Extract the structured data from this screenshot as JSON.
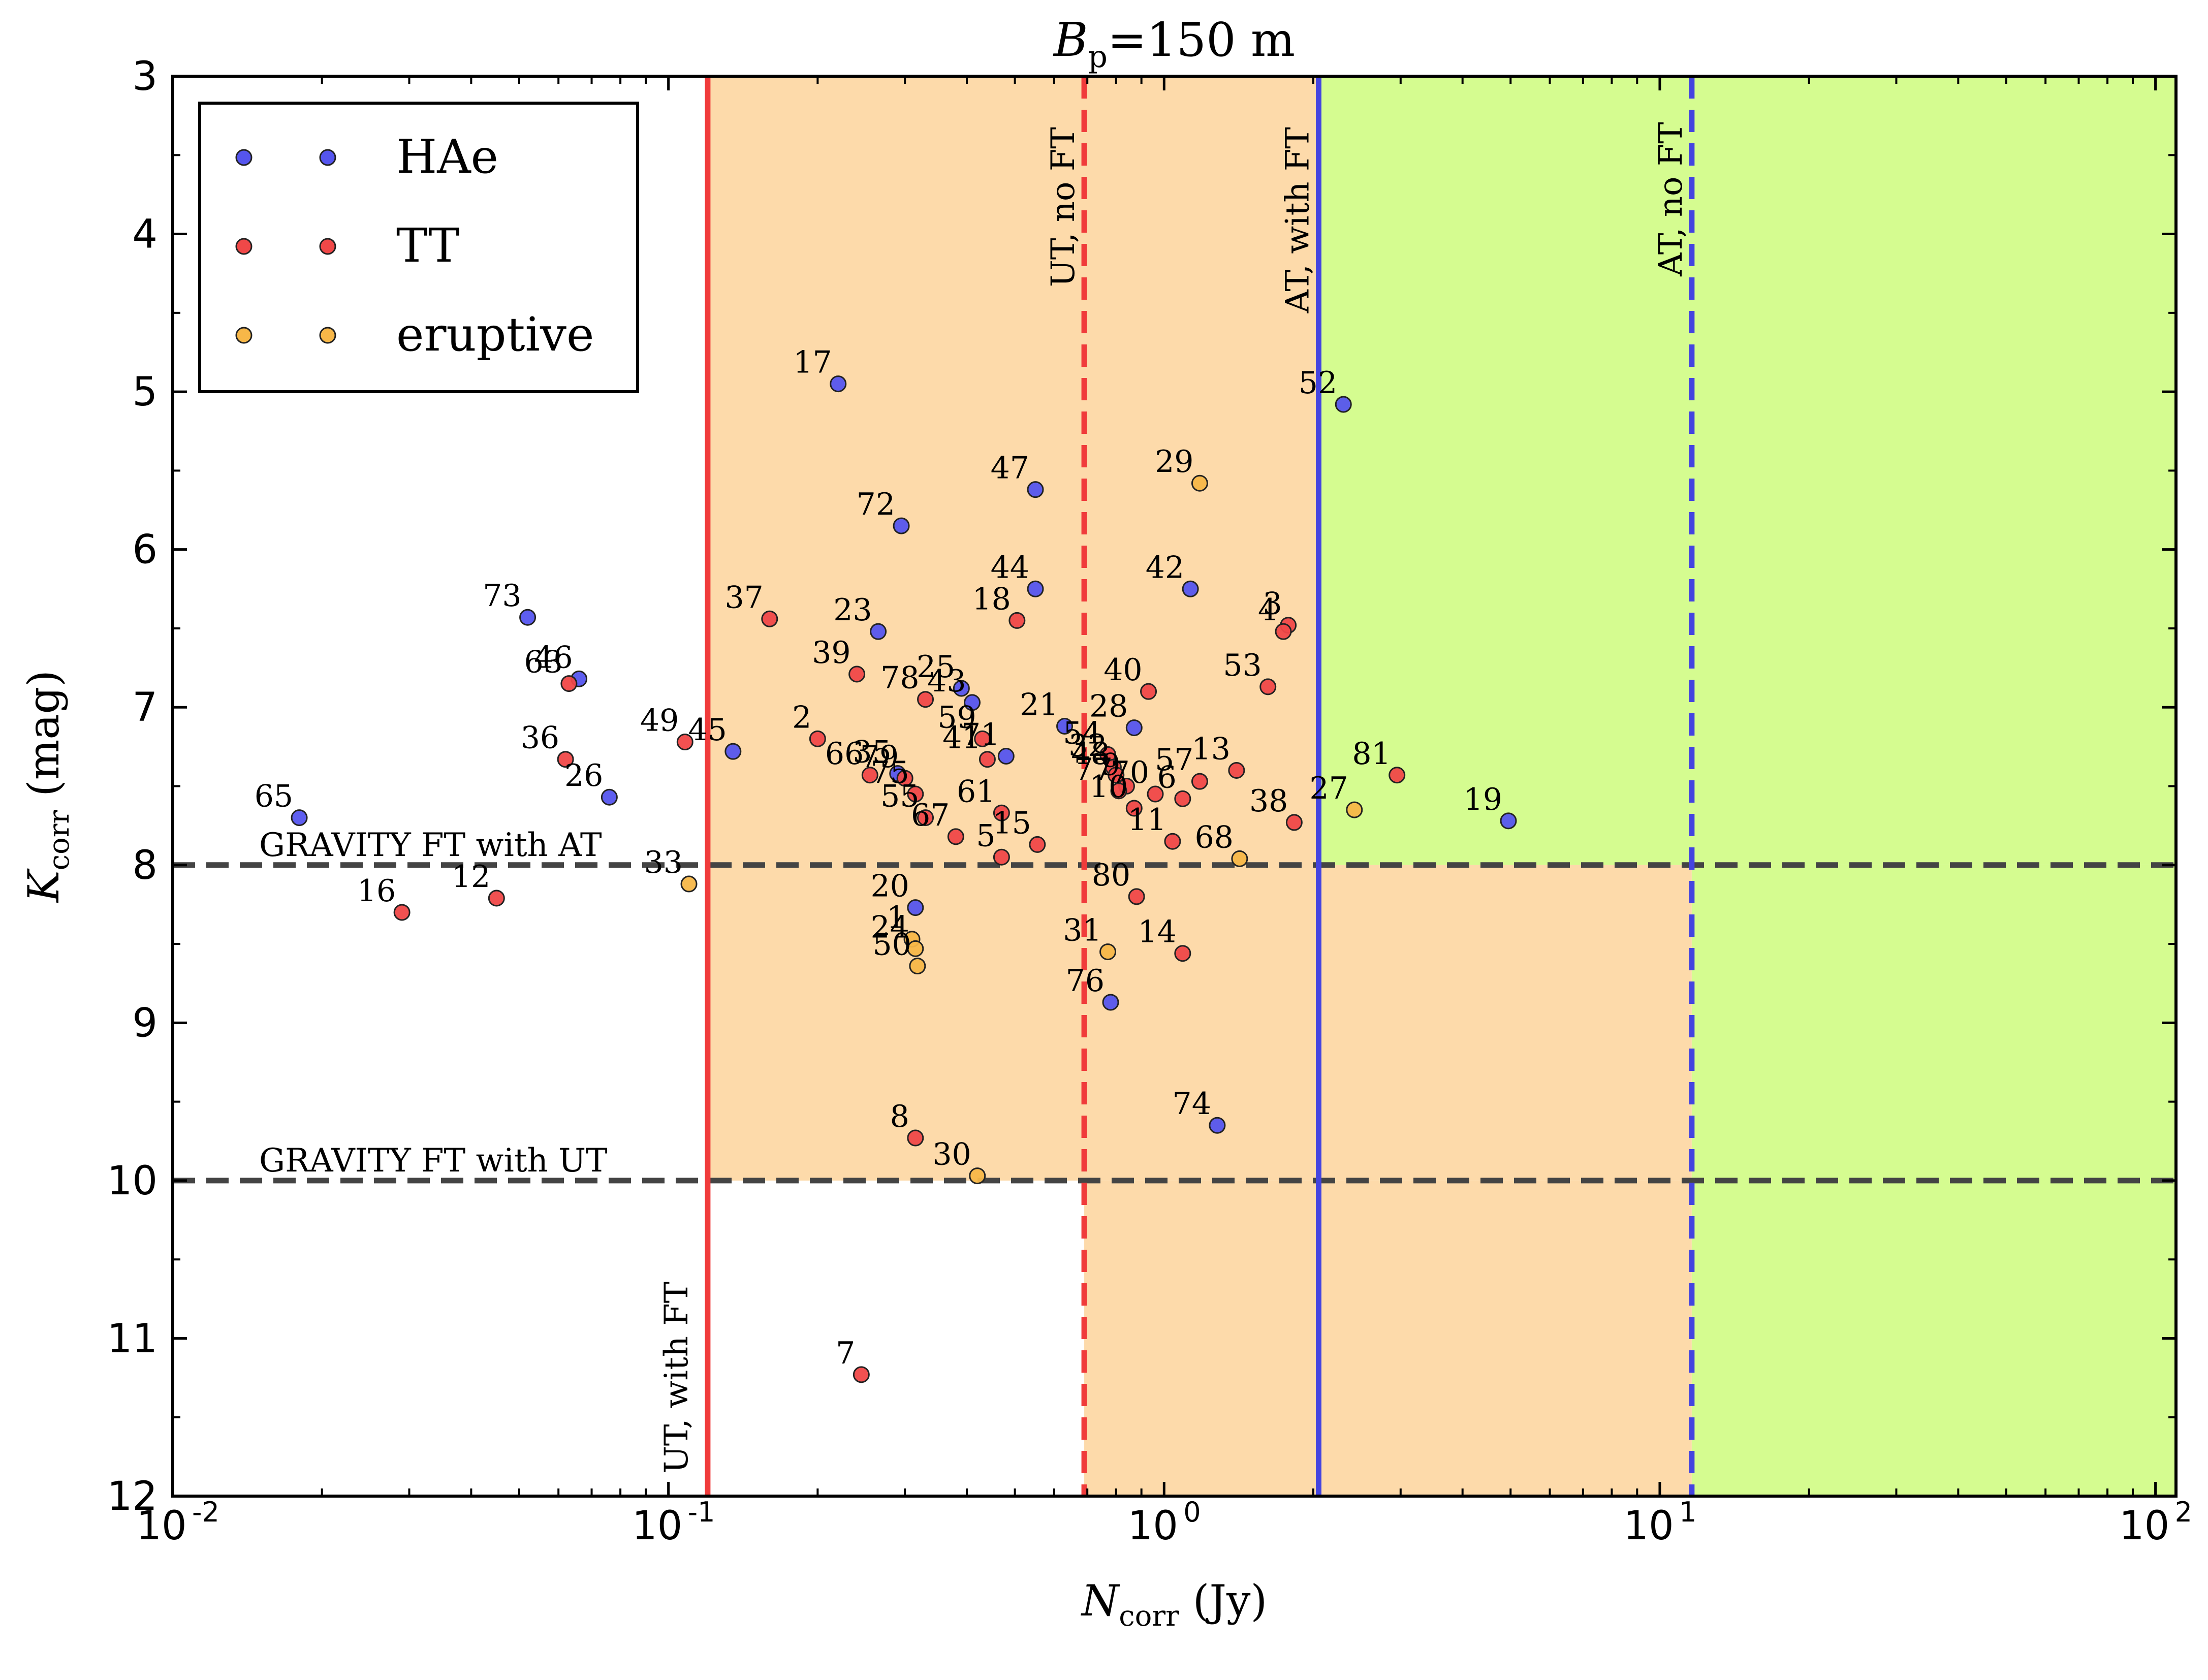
{
  "chart_data": {
    "type": "scatter",
    "title": "B_p =150 m",
    "title_parts": {
      "main": "B",
      "sub": "p",
      "rest": "=150 m"
    },
    "xlabel": "N_corr (Jy)",
    "xlabel_parts": {
      "main": "N",
      "sub": "corr",
      "rest": " (Jy)"
    },
    "ylabel": "K_corr (mag)",
    "ylabel_parts": {
      "main": "K",
      "sub": "corr",
      "rest": " (mag)"
    },
    "x_scale": "log",
    "xlim": [
      0.01,
      110
    ],
    "ylim": [
      12,
      3
    ],
    "y_inverted": true,
    "xticks": [
      {
        "value": 0.01,
        "base": "10",
        "exp": "-2"
      },
      {
        "value": 0.1,
        "base": "10",
        "exp": "-1"
      },
      {
        "value": 1,
        "base": "10",
        "exp": "0"
      },
      {
        "value": 10,
        "base": "10",
        "exp": "1"
      },
      {
        "value": 100,
        "base": "10",
        "exp": "2"
      }
    ],
    "yticks": [
      "3",
      "4",
      "5",
      "6",
      "7",
      "8",
      "9",
      "10",
      "11",
      "12"
    ],
    "grid": false,
    "legend": {
      "placement": "top-left",
      "entries": [
        {
          "label": "HAe",
          "color": "#5555ee"
        },
        {
          "label": "TT",
          "color": "#f04848"
        },
        {
          "label": "eruptive",
          "color": "#f7b748"
        }
      ]
    },
    "regions": [
      {
        "name": "orange-zone-upper",
        "x": [
          0.12,
          2.05
        ],
        "y": [
          3,
          10
        ],
        "color": "#fddaaa"
      },
      {
        "name": "orange-zone-lower",
        "x": [
          0.69,
          11.6
        ],
        "y": [
          10,
          12
        ],
        "color": "#fddaaa"
      },
      {
        "name": "orange-zone-mid",
        "x": [
          2.05,
          11.6
        ],
        "y": [
          8,
          10
        ],
        "color": "#fddaaa"
      },
      {
        "name": "green-zone-upper",
        "x": [
          2.05,
          110
        ],
        "y": [
          3,
          8
        ],
        "color": "#d5fc90"
      },
      {
        "name": "green-zone-right",
        "x": [
          11.6,
          110
        ],
        "y": [
          8,
          12
        ],
        "color": "#d5fc90"
      }
    ],
    "vlines": [
      {
        "x": 0.12,
        "color": "#f03b3b",
        "style": "solid",
        "label": "UT, with FT"
      },
      {
        "x": 0.69,
        "color": "#f03b3b",
        "style": "dashed",
        "label": "UT, no FT"
      },
      {
        "x": 2.05,
        "color": "#4444e0",
        "style": "solid",
        "label": "AT, with FT"
      },
      {
        "x": 11.6,
        "color": "#4444e0",
        "style": "dashed",
        "label": "AT, no FT"
      }
    ],
    "hlines": [
      {
        "y": 8,
        "color": "#444444",
        "style": "dashed",
        "label": "GRAVITY FT with AT"
      },
      {
        "y": 10,
        "color": "#444444",
        "style": "dashed",
        "label": "GRAVITY FT with UT"
      }
    ],
    "series": [
      {
        "name": "HAe",
        "color": "#5555ee",
        "points": [
          {
            "id": "17",
            "x": 0.22,
            "y": 4.95
          },
          {
            "id": "52",
            "x": 2.3,
            "y": 5.08
          },
          {
            "id": "47",
            "x": 0.55,
            "y": 5.62
          },
          {
            "id": "72",
            "x": 0.295,
            "y": 5.85
          },
          {
            "id": "44",
            "x": 0.55,
            "y": 6.25
          },
          {
            "id": "42",
            "x": 1.13,
            "y": 6.25
          },
          {
            "id": "73",
            "x": 0.052,
            "y": 6.43
          },
          {
            "id": "23",
            "x": 0.265,
            "y": 6.52
          },
          {
            "id": "46",
            "x": 0.066,
            "y": 6.82
          },
          {
            "id": "25",
            "x": 0.39,
            "y": 6.88
          },
          {
            "id": "43",
            "x": 0.41,
            "y": 6.97
          },
          {
            "id": "21",
            "x": 0.63,
            "y": 7.12
          },
          {
            "id": "28",
            "x": 0.87,
            "y": 7.13
          },
          {
            "id": "45",
            "x": 0.135,
            "y": 7.28
          },
          {
            "id": "71",
            "x": 0.48,
            "y": 7.31
          },
          {
            "id": "35",
            "x": 0.29,
            "y": 7.42
          },
          {
            "id": "26",
            "x": 0.076,
            "y": 7.57
          },
          {
            "id": "65",
            "x": 0.018,
            "y": 7.7
          },
          {
            "id": "19",
            "x": 4.95,
            "y": 7.72
          },
          {
            "id": "20",
            "x": 0.315,
            "y": 8.27
          },
          {
            "id": "76",
            "x": 0.78,
            "y": 8.87
          },
          {
            "id": "74",
            "x": 1.28,
            "y": 9.65
          }
        ]
      },
      {
        "name": "TT",
        "color": "#f04848",
        "points": [
          {
            "id": "37",
            "x": 0.16,
            "y": 6.44
          },
          {
            "id": "18",
            "x": 0.505,
            "y": 6.45
          },
          {
            "id": "3",
            "x": 1.78,
            "y": 6.48
          },
          {
            "id": "4",
            "x": 1.74,
            "y": 6.52
          },
          {
            "id": "39",
            "x": 0.24,
            "y": 6.79
          },
          {
            "id": "63",
            "x": 0.063,
            "y": 6.85
          },
          {
            "id": "53",
            "x": 1.62,
            "y": 6.87
          },
          {
            "id": "40",
            "x": 0.93,
            "y": 6.9
          },
          {
            "id": "78",
            "x": 0.33,
            "y": 6.95
          },
          {
            "id": "59",
            "x": 0.43,
            "y": 7.2
          },
          {
            "id": "49",
            "x": 0.108,
            "y": 7.22
          },
          {
            "id": "2",
            "x": 0.2,
            "y": 7.2
          },
          {
            "id": "41",
            "x": 0.44,
            "y": 7.33
          },
          {
            "id": "36",
            "x": 0.062,
            "y": 7.33
          },
          {
            "id": "54",
            "x": 0.77,
            "y": 7.3
          },
          {
            "id": "32",
            "x": 0.79,
            "y": 7.38
          },
          {
            "id": "13",
            "x": 1.4,
            "y": 7.4
          },
          {
            "id": "66",
            "x": 0.255,
            "y": 7.43
          },
          {
            "id": "48",
            "x": 0.8,
            "y": 7.43
          },
          {
            "id": "57",
            "x": 1.18,
            "y": 7.47
          },
          {
            "id": "81",
            "x": 2.95,
            "y": 7.43
          },
          {
            "id": "79",
            "x": 0.3,
            "y": 7.45
          },
          {
            "id": "9",
            "x": 0.84,
            "y": 7.5
          },
          {
            "id": "77",
            "x": 0.81,
            "y": 7.53
          },
          {
            "id": "70",
            "x": 0.96,
            "y": 7.55
          },
          {
            "id": "75",
            "x": 0.315,
            "y": 7.55
          },
          {
            "id": "6",
            "x": 1.09,
            "y": 7.58
          },
          {
            "id": "10",
            "x": 0.87,
            "y": 7.64
          },
          {
            "id": "61",
            "x": 0.47,
            "y": 7.67
          },
          {
            "id": "55",
            "x": 0.33,
            "y": 7.7
          },
          {
            "id": "38",
            "x": 1.83,
            "y": 7.73
          },
          {
            "id": "67",
            "x": 0.38,
            "y": 7.82
          },
          {
            "id": "15",
            "x": 0.555,
            "y": 7.87
          },
          {
            "id": "11",
            "x": 1.04,
            "y": 7.85
          },
          {
            "id": "5",
            "x": 0.47,
            "y": 7.95
          },
          {
            "id": "80",
            "x": 0.88,
            "y": 8.2
          },
          {
            "id": "12",
            "x": 0.045,
            "y": 8.21
          },
          {
            "id": "16",
            "x": 0.029,
            "y": 8.3
          },
          {
            "id": "14",
            "x": 1.09,
            "y": 8.56
          },
          {
            "id": "8",
            "x": 0.315,
            "y": 9.73
          },
          {
            "id": "7",
            "x": 0.245,
            "y": 11.23
          }
        ]
      },
      {
        "name": "eruptive",
        "color": "#f7b748",
        "points": [
          {
            "id": "29",
            "x": 1.18,
            "y": 5.58
          },
          {
            "id": "27",
            "x": 2.42,
            "y": 7.65
          },
          {
            "id": "68",
            "x": 1.42,
            "y": 7.96
          },
          {
            "id": "33",
            "x": 0.11,
            "y": 8.12
          },
          {
            "id": "1",
            "x": 0.31,
            "y": 8.47
          },
          {
            "id": "24",
            "x": 0.315,
            "y": 8.53
          },
          {
            "id": "31",
            "x": 0.77,
            "y": 8.55
          },
          {
            "id": "50",
            "x": 0.318,
            "y": 8.64
          },
          {
            "id": "30",
            "x": 0.42,
            "y": 9.97
          }
        ]
      }
    ]
  }
}
